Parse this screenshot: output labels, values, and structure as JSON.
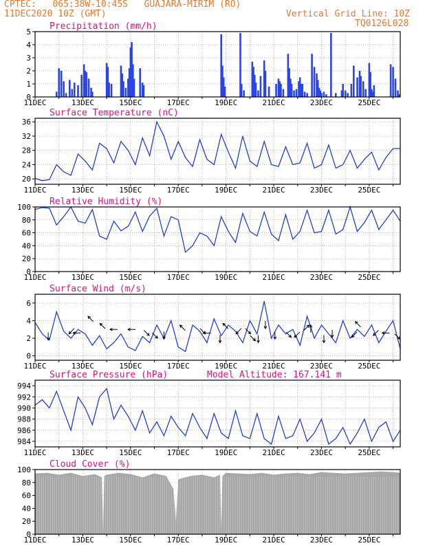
{
  "header": {
    "line1_left": "CPTEC:   065:38W-10:45S   GUAJARA-MIRIM (RO)",
    "line2_left": "11DEC2020 10Z (GMT)",
    "line2_right": "Vertical Grid Line: 10Z",
    "line3_right": "TQ0126L028"
  },
  "colors": {
    "header": "#e8772c",
    "title": "#e0107e",
    "series": "#1f3fe0",
    "bars": "#2a44e8",
    "cloud": "#a8a8a8",
    "arrow": "#000000"
  },
  "chart_data": [
    {
      "id": "precip",
      "type": "bar",
      "title": "Precipitation  (mm/h)",
      "ylim": [
        0,
        5
      ],
      "yticks": [
        0,
        1,
        2,
        3,
        4,
        5
      ],
      "x_dates": [
        "11DEC",
        "13DEC",
        "15DEC",
        "17DEC",
        "19DEC",
        "21DEC",
        "23DEC",
        "25DEC"
      ],
      "x": [
        0.9,
        1.0,
        1.1,
        1.2,
        1.3,
        1.45,
        1.55,
        1.65,
        1.8,
        1.95,
        2.05,
        2.1,
        2.15,
        2.25,
        2.35,
        2.4,
        3.0,
        3.05,
        3.1,
        3.2,
        3.6,
        3.65,
        3.7,
        3.8,
        3.9,
        3.95,
        4.0,
        4.05,
        4.1,
        4.15,
        4.4,
        4.5,
        4.55,
        7.8,
        7.85,
        7.9,
        7.95,
        8.6,
        8.65,
        8.75,
        9.1,
        9.15,
        9.2,
        9.25,
        9.35,
        9.45,
        9.6,
        9.65,
        9.8,
        10.1,
        10.2,
        10.25,
        10.3,
        10.4,
        10.6,
        10.65,
        10.7,
        10.75,
        10.85,
        10.95,
        11.05,
        11.1,
        11.15,
        11.2,
        11.3,
        11.4,
        11.6,
        11.7,
        11.8,
        11.85,
        11.9,
        11.95,
        12.0,
        12.1,
        12.2,
        12.4,
        12.6,
        12.85,
        12.9,
        13.0,
        13.1,
        13.25,
        13.35,
        13.5,
        13.6,
        13.65,
        13.75,
        13.85,
        14.0,
        14.05,
        14.1,
        14.15,
        14.2,
        14.9,
        15.0,
        15.1,
        15.2,
        15.25
      ],
      "values": [
        0.4,
        2.2,
        2.0,
        1.2,
        0.3,
        1.3,
        0.6,
        1.1,
        0.9,
        1.7,
        2.5,
        2.0,
        1.9,
        1.4,
        0.7,
        0.4,
        2.6,
        2.3,
        1.1,
        1.0,
        2.4,
        1.8,
        1.2,
        0.7,
        1.4,
        2.2,
        3.8,
        4.2,
        2.5,
        1.4,
        2.2,
        1.1,
        0.9,
        4.8,
        2.4,
        1.5,
        0.8,
        4.9,
        1.0,
        0.5,
        2.7,
        2.3,
        1.7,
        1.1,
        0.5,
        1.6,
        2.8,
        2.0,
        0.8,
        1.0,
        1.4,
        1.2,
        1.0,
        0.6,
        3.3,
        2.2,
        1.4,
        1.0,
        0.5,
        0.6,
        1.2,
        1.5,
        1.0,
        1.0,
        0.4,
        0.3,
        3.3,
        2.3,
        1.8,
        1.3,
        0.7,
        0.5,
        0.3,
        0.4,
        0.2,
        4.9,
        0.3,
        0.5,
        1.0,
        0.5,
        0.3,
        1.0,
        2.4,
        1.5,
        2.0,
        1.6,
        1.2,
        0.6,
        2.6,
        1.9,
        0.6,
        0.4,
        0.9,
        2.5,
        2.3,
        1.4,
        0.5,
        0.2
      ]
    },
    {
      "id": "temp",
      "type": "line",
      "title": "Surface Temperature (nC)",
      "ylim": [
        18.5,
        37
      ],
      "yticks": [
        20,
        24,
        28,
        32,
        36
      ],
      "x_dates": [
        "11DEC",
        "13DEC",
        "15DEC",
        "17DEC",
        "19DEC",
        "21DEC",
        "23DEC",
        "25DEC"
      ],
      "x": [
        0,
        0.3,
        0.6,
        0.9,
        1.2,
        1.5,
        1.8,
        2.1,
        2.4,
        2.7,
        3.0,
        3.3,
        3.6,
        3.9,
        4.2,
        4.5,
        4.8,
        5.1,
        5.4,
        5.7,
        6.0,
        6.3,
        6.6,
        6.9,
        7.2,
        7.5,
        7.8,
        8.1,
        8.4,
        8.7,
        9.0,
        9.3,
        9.6,
        9.9,
        10.2,
        10.5,
        10.8,
        11.1,
        11.4,
        11.7,
        12.0,
        12.3,
        12.6,
        12.9,
        13.2,
        13.5,
        13.8,
        14.1,
        14.4,
        14.7,
        15.0,
        15.3
      ],
      "values": [
        20.2,
        19.5,
        19.8,
        24.0,
        22.0,
        21.0,
        27.0,
        25.0,
        22.5,
        30.0,
        28.5,
        24.5,
        30.5,
        28.0,
        24.0,
        31.5,
        26.5,
        36.0,
        32.0,
        25.5,
        30.5,
        26.0,
        23.5,
        31.0,
        25.5,
        24.0,
        32.5,
        27.5,
        23.0,
        32.0,
        25.0,
        23.5,
        30.5,
        24.0,
        23.5,
        29.0,
        24.0,
        24.5,
        30.0,
        23.0,
        24.0,
        29.5,
        23.0,
        24.0,
        28.0,
        23.0,
        25.5,
        27.5,
        22.5,
        26.0,
        28.5,
        28.5
      ]
    },
    {
      "id": "rh",
      "type": "line",
      "title": "Relative Humidity (%)",
      "ylim": [
        0,
        100
      ],
      "yticks": [
        0,
        20,
        40,
        60,
        80,
        100
      ],
      "x_dates": [
        "11DEC",
        "13DEC",
        "15DEC",
        "17DEC",
        "19DEC",
        "21DEC",
        "23DEC",
        "25DEC"
      ],
      "x": [
        0,
        0.3,
        0.6,
        0.9,
        1.2,
        1.5,
        1.8,
        2.1,
        2.4,
        2.7,
        3.0,
        3.3,
        3.6,
        3.9,
        4.2,
        4.5,
        4.8,
        5.1,
        5.4,
        5.7,
        6.0,
        6.3,
        6.6,
        6.9,
        7.2,
        7.5,
        7.8,
        8.1,
        8.4,
        8.7,
        9.0,
        9.3,
        9.6,
        9.9,
        10.2,
        10.5,
        10.8,
        11.1,
        11.4,
        11.7,
        12.0,
        12.3,
        12.6,
        12.9,
        13.2,
        13.5,
        13.8,
        14.1,
        14.4,
        14.7,
        15.0,
        15.3
      ],
      "values": [
        96,
        99,
        98,
        72,
        85,
        100,
        78,
        75,
        96,
        55,
        50,
        78,
        63,
        70,
        92,
        62,
        86,
        98,
        55,
        85,
        80,
        30,
        40,
        60,
        55,
        40,
        85,
        62,
        45,
        90,
        62,
        55,
        92,
        58,
        48,
        88,
        50,
        62,
        95,
        60,
        62,
        95,
        58,
        65,
        100,
        62,
        76,
        95,
        65,
        80,
        95,
        78
      ]
    },
    {
      "id": "wind",
      "type": "line",
      "title": "Surface Wind  (m/s)",
      "ylim": [
        -0.5,
        7
      ],
      "yticks": [
        0,
        2,
        4,
        6
      ],
      "x_dates": [
        "11DEC",
        "13DEC",
        "15DEC",
        "17DEC",
        "19DEC",
        "21DEC",
        "23DEC",
        "25DEC"
      ],
      "x": [
        0,
        0.3,
        0.6,
        0.9,
        1.2,
        1.5,
        1.8,
        2.1,
        2.4,
        2.7,
        3.0,
        3.3,
        3.6,
        3.9,
        4.2,
        4.5,
        4.8,
        5.1,
        5.4,
        5.7,
        6.0,
        6.3,
        6.6,
        6.9,
        7.2,
        7.5,
        7.8,
        8.1,
        8.4,
        8.7,
        9.0,
        9.3,
        9.6,
        9.9,
        10.2,
        10.5,
        10.8,
        11.1,
        11.4,
        11.7,
        12.0,
        12.3,
        12.6,
        12.9,
        13.2,
        13.5,
        13.8,
        14.1,
        14.4,
        14.7,
        15.0,
        15.3
      ],
      "values": [
        3.8,
        2.5,
        1.8,
        5.0,
        2.8,
        2.0,
        3.0,
        2.5,
        1.2,
        2.3,
        0.8,
        1.5,
        2.5,
        1.0,
        0.6,
        2.2,
        1.5,
        3.5,
        2.0,
        4.0,
        1.0,
        0.5,
        3.5,
        2.8,
        1.5,
        4.2,
        2.3,
        3.5,
        2.8,
        1.5,
        4.0,
        2.5,
        6.2,
        2.0,
        3.5,
        2.5,
        3.0,
        1.2,
        4.5,
        2.0,
        3.5,
        2.5,
        1.5,
        4.0,
        2.0,
        3.0,
        2.2,
        3.5,
        1.5,
        2.8,
        4.0,
        0.8
      ],
      "arrows": [
        {
          "x": 0.55,
          "speed": 2.5,
          "dir": "S"
        },
        {
          "x": 1.6,
          "speed": 3.0,
          "dir": "SW"
        },
        {
          "x": 1.85,
          "speed": 2.6,
          "dir": "W"
        },
        {
          "x": 2.4,
          "speed": 4.0,
          "dir": "NW"
        },
        {
          "x": 2.9,
          "speed": 3.2,
          "dir": "NW"
        },
        {
          "x": 3.4,
          "speed": 3.0,
          "dir": "W"
        },
        {
          "x": 4.15,
          "speed": 3.0,
          "dir": "W"
        },
        {
          "x": 4.6,
          "speed": 2.8,
          "dir": "SE"
        },
        {
          "x": 4.95,
          "speed": 2.5,
          "dir": "SE"
        },
        {
          "x": 5.4,
          "speed": 2.6,
          "dir": "S"
        },
        {
          "x": 6.25,
          "speed": 3.0,
          "dir": "NW"
        },
        {
          "x": 6.95,
          "speed": 3.0,
          "dir": "SE"
        },
        {
          "x": 7.3,
          "speed": 2.6,
          "dir": "W"
        },
        {
          "x": 7.75,
          "speed": 2.2,
          "dir": "S"
        },
        {
          "x": 8.05,
          "speed": 3.2,
          "dir": "NW"
        },
        {
          "x": 8.6,
          "speed": 3.0,
          "dir": "SW"
        },
        {
          "x": 8.85,
          "speed": 3.0,
          "dir": "SE"
        },
        {
          "x": 9.05,
          "speed": 2.2,
          "dir": "SE"
        },
        {
          "x": 9.35,
          "speed": 2.2,
          "dir": "S"
        },
        {
          "x": 9.65,
          "speed": 3.8,
          "dir": "S"
        },
        {
          "x": 10.05,
          "speed": 2.6,
          "dir": "S"
        },
        {
          "x": 10.55,
          "speed": 2.6,
          "dir": "SE"
        },
        {
          "x": 11.05,
          "speed": 2.6,
          "dir": "SW"
        },
        {
          "x": 11.3,
          "speed": 3.0,
          "dir": "NE"
        },
        {
          "x": 11.55,
          "speed": 2.8,
          "dir": "N"
        },
        {
          "x": 12.1,
          "speed": 2.2,
          "dir": "S"
        },
        {
          "x": 12.45,
          "speed": 2.8,
          "dir": "S"
        },
        {
          "x": 13.45,
          "speed": 2.6,
          "dir": "SW"
        },
        {
          "x": 13.6,
          "speed": 3.4,
          "dir": "NW"
        },
        {
          "x": 14.35,
          "speed": 2.8,
          "dir": "SW"
        },
        {
          "x": 14.8,
          "speed": 2.6,
          "dir": "W"
        },
        {
          "x": 15.1,
          "speed": 2.4,
          "dir": "SE"
        }
      ]
    },
    {
      "id": "press",
      "type": "line",
      "title": "Surface Pressure (hPa)",
      "annotation": "Model Altitude: 167.141  m",
      "ylim": [
        983,
        995
      ],
      "yticks": [
        984,
        986,
        988,
        990,
        992,
        994
      ],
      "x_dates": [
        "11DEC",
        "13DEC",
        "15DEC",
        "17DEC",
        "19DEC",
        "21DEC",
        "23DEC",
        "25DEC"
      ],
      "x": [
        0,
        0.3,
        0.6,
        0.9,
        1.2,
        1.5,
        1.8,
        2.1,
        2.4,
        2.7,
        3.0,
        3.3,
        3.6,
        3.9,
        4.2,
        4.5,
        4.8,
        5.1,
        5.4,
        5.7,
        6.0,
        6.3,
        6.6,
        6.9,
        7.2,
        7.5,
        7.8,
        8.1,
        8.4,
        8.7,
        9.0,
        9.3,
        9.6,
        9.9,
        10.2,
        10.5,
        10.8,
        11.1,
        11.4,
        11.7,
        12.0,
        12.3,
        12.6,
        12.9,
        13.2,
        13.5,
        13.8,
        14.1,
        14.4,
        14.7,
        15.0,
        15.3
      ],
      "values": [
        990.5,
        991.5,
        990.0,
        993.0,
        989.5,
        986.0,
        992.0,
        990.0,
        987.0,
        992.0,
        993.5,
        988.0,
        990.5,
        988.5,
        986.0,
        989.5,
        985.5,
        987.5,
        985.0,
        988.5,
        986.5,
        985.0,
        989.0,
        986.5,
        984.5,
        989.0,
        985.5,
        984.5,
        989.5,
        985.0,
        984.5,
        989.0,
        984.5,
        983.5,
        988.5,
        984.5,
        985.0,
        988.0,
        984.0,
        985.5,
        988.0,
        983.5,
        984.5,
        986.5,
        983.5,
        985.5,
        988.0,
        984.0,
        986.5,
        987.5,
        984.0,
        986.0
      ]
    },
    {
      "id": "cloud",
      "type": "area",
      "title": "Cloud Cover (%)",
      "ylim": [
        0,
        100
      ],
      "yticks": [
        0,
        20,
        40,
        60,
        80,
        100
      ],
      "x_dates": [
        "11DEC",
        "13DEC",
        "15DEC",
        "17DEC",
        "19DEC",
        "21DEC",
        "23DEC",
        "25DEC"
      ],
      "x": [
        0,
        0.5,
        1.0,
        1.5,
        2.0,
        2.5,
        2.8,
        2.85,
        2.9,
        3.0,
        3.5,
        4.0,
        4.5,
        5.0,
        5.5,
        5.8,
        5.9,
        6.0,
        6.5,
        7.0,
        7.5,
        7.75,
        7.8,
        7.85,
        8.0,
        8.5,
        9.0,
        9.5,
        10.0,
        10.5,
        11.0,
        11.5,
        12.0,
        12.5,
        13.0,
        13.5,
        14.0,
        14.5,
        15.0,
        15.3
      ],
      "values": [
        94,
        95,
        92,
        95,
        90,
        93,
        88,
        2,
        90,
        92,
        95,
        93,
        88,
        94,
        90,
        70,
        20,
        85,
        90,
        92,
        88,
        92,
        10,
        90,
        95,
        94,
        93,
        95,
        92,
        94,
        95,
        93,
        96,
        95,
        94,
        95,
        96,
        97,
        96,
        95
      ]
    }
  ]
}
